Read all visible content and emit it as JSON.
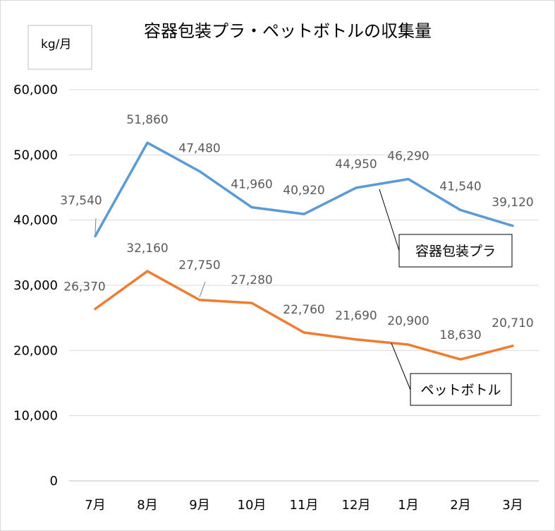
{
  "chart_data": {
    "type": "line",
    "title": "容器包装プラ・ペットボトルの収集量",
    "unit_label": "kg/月",
    "categories": [
      "7月",
      "8月",
      "9月",
      "10月",
      "11月",
      "12月",
      "1月",
      "2月",
      "3月"
    ],
    "ylim": [
      0,
      60000
    ],
    "yticks": [
      0,
      10000,
      20000,
      30000,
      40000,
      50000,
      60000
    ],
    "ytick_labels": [
      "0",
      "10,000",
      "20,000",
      "30,000",
      "40,000",
      "50,000",
      "60,000"
    ],
    "grid": true,
    "series": [
      {
        "name": "容器包装プラ",
        "color": "#5b9bd5",
        "values": [
          37540,
          51860,
          47480,
          41960,
          40920,
          44950,
          46290,
          41540,
          39120
        ],
        "labels": [
          "37,540",
          "51,860",
          "47,480",
          "41,960",
          "40,920",
          "44,950",
          "46,290",
          "41,540",
          "39,120"
        ]
      },
      {
        "name": "ペットボトル",
        "color": "#ed7d31",
        "values": [
          26370,
          32160,
          27750,
          27280,
          22760,
          21690,
          20900,
          18630,
          20710
        ],
        "labels": [
          "26,370",
          "32,160",
          "27,750",
          "27,280",
          "22,760",
          "21,690",
          "20,900",
          "18,630",
          "20,710"
        ]
      }
    ]
  }
}
